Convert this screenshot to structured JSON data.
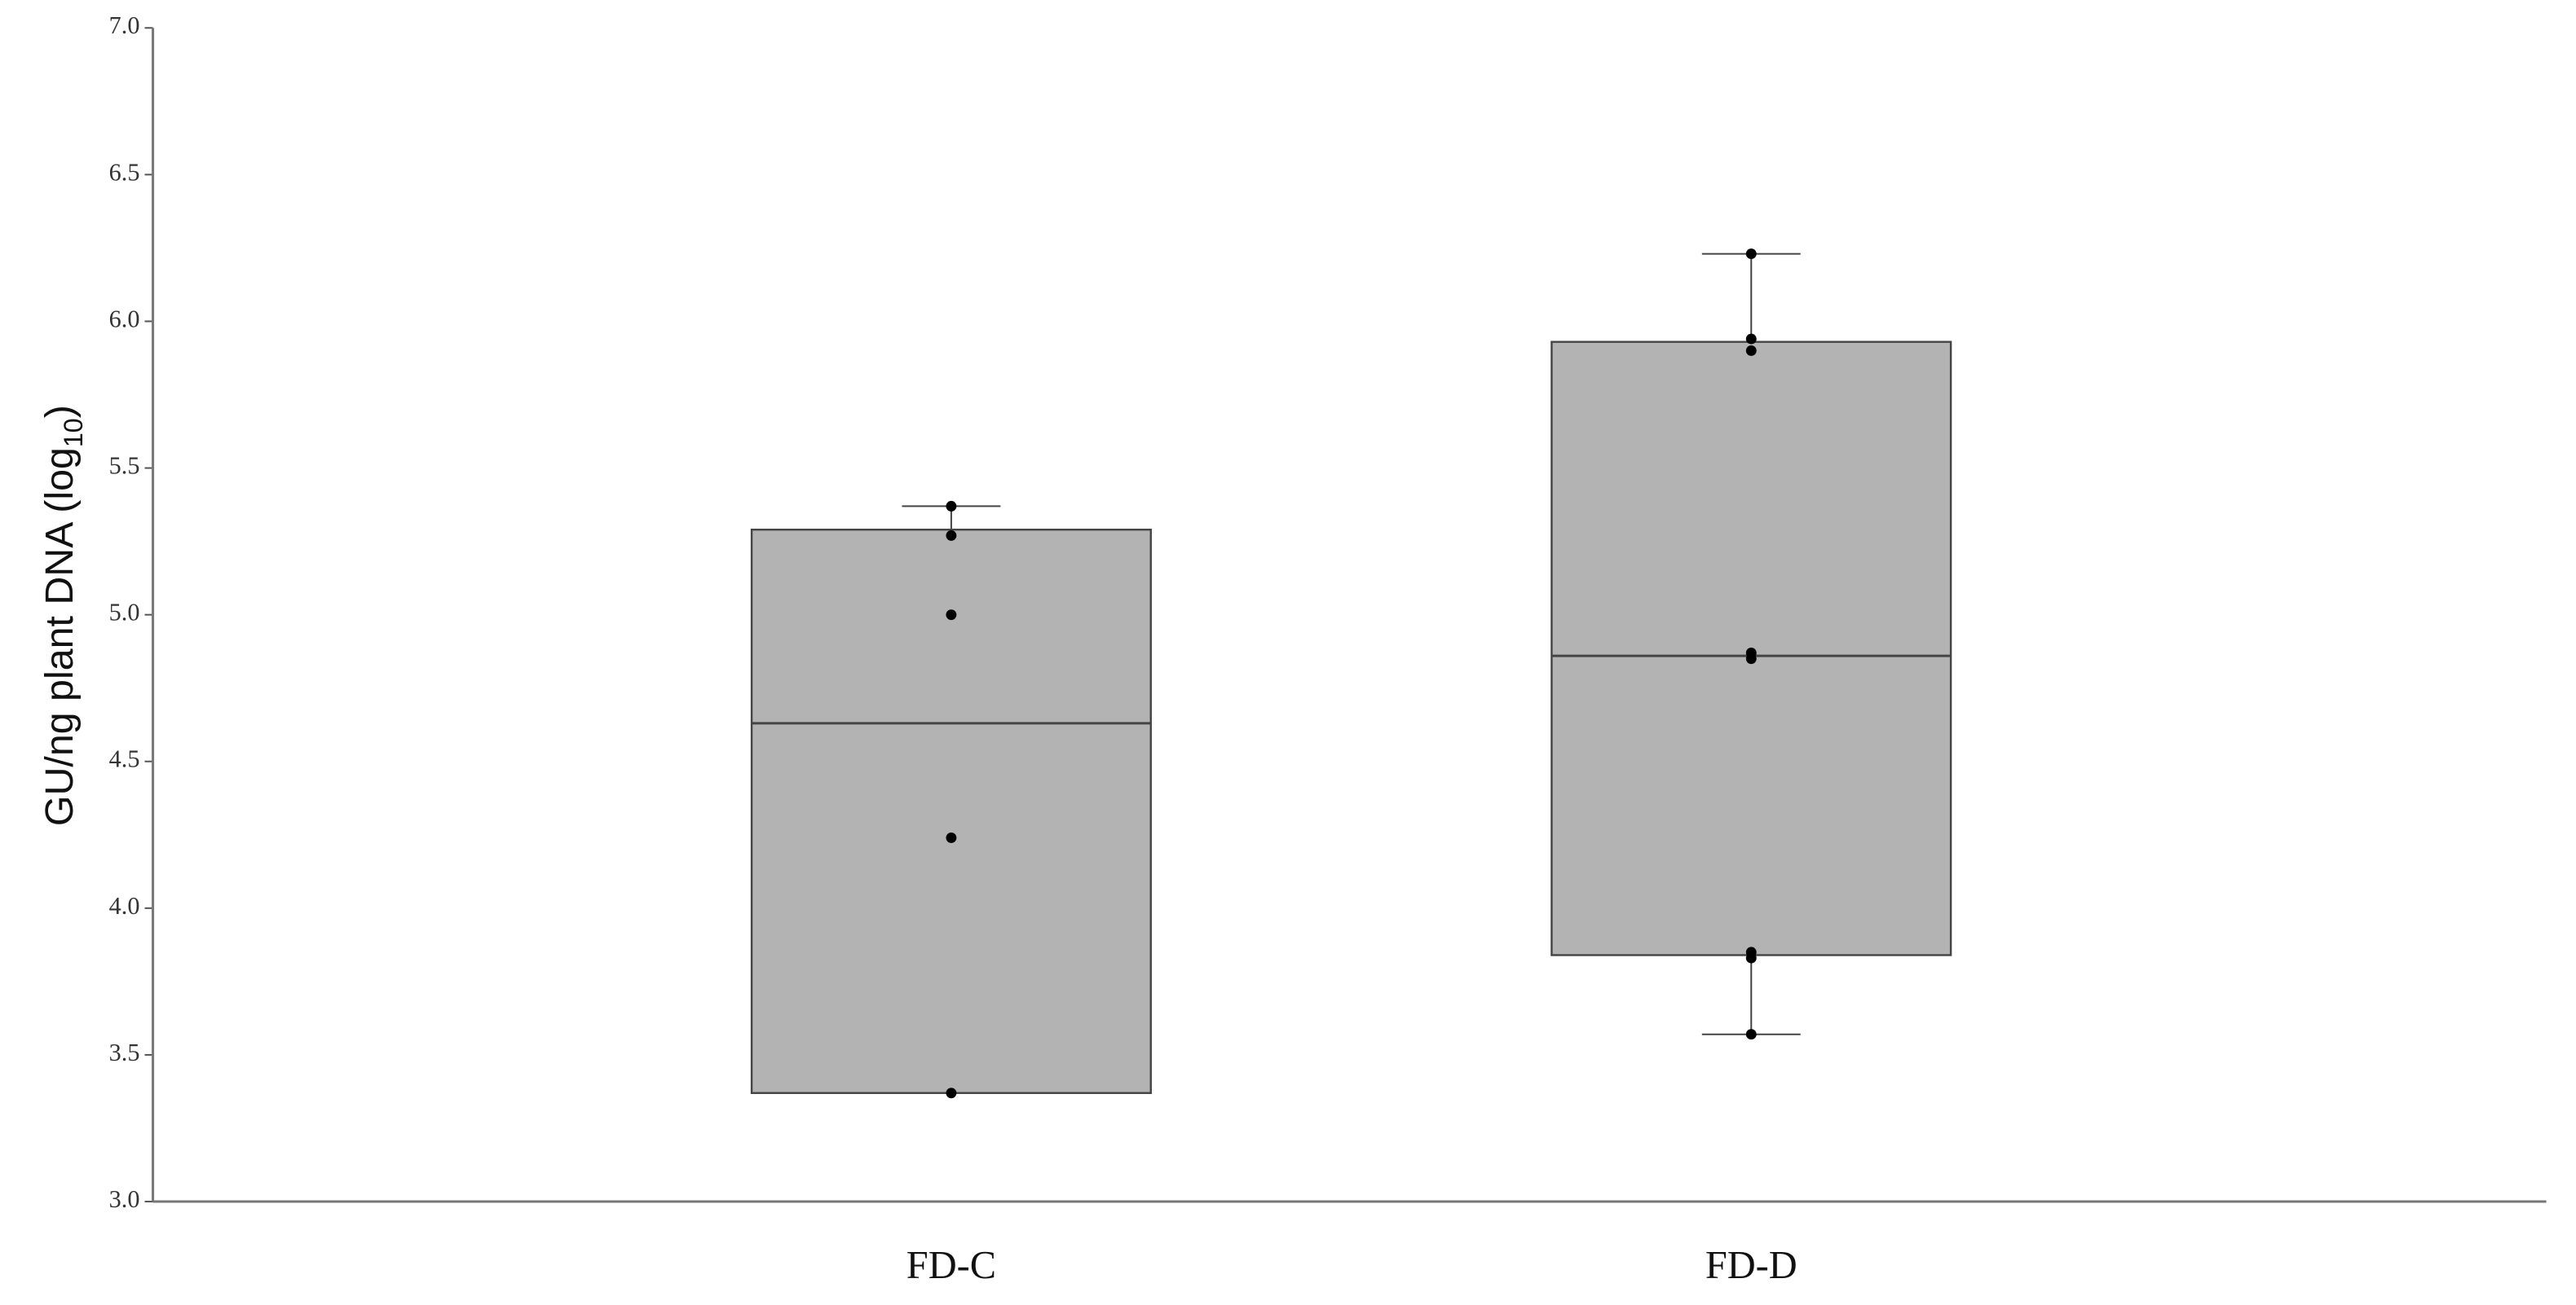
{
  "chart_data": {
    "type": "box",
    "y_label": {
      "text": "GU/ng plant DNA (log",
      "subscript": "10",
      "end": ")"
    },
    "categories": [
      "FD-C",
      "FD-D"
    ],
    "color": "#b3b3b3",
    "boxes": [
      {
        "whisker_low": 3.37,
        "q1": 3.37,
        "median": 4.63,
        "q3": 5.29,
        "whisker_high": 5.37,
        "points": [
          5.37,
          5.27,
          5.0,
          4.24,
          3.37
        ]
      },
      {
        "whisker_low": 3.57,
        "q1": 3.84,
        "median": 4.86,
        "q3": 5.93,
        "whisker_high": 6.23,
        "points": [
          6.23,
          5.94,
          5.9,
          4.87,
          4.85,
          3.85,
          3.83,
          3.57
        ]
      }
    ],
    "ylim": [
      3,
      7
    ],
    "yticks": [
      {
        "value": 3,
        "label": "3.0"
      },
      3.5,
      {
        "value": 4,
        "label": "4.0"
      },
      4.5,
      {
        "value": 5,
        "label": "5.0"
      },
      5.5,
      {
        "value": 6,
        "label": "6.0"
      },
      6.5,
      {
        "value": 7,
        "label": "7.0"
      }
    ]
  }
}
